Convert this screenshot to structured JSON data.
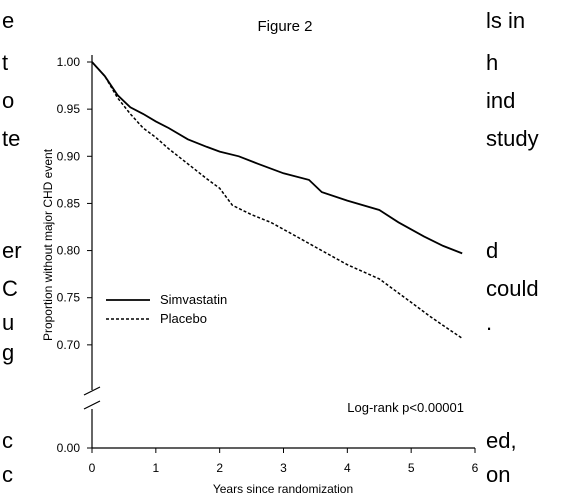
{
  "background_text": {
    "left": [
      "e",
      "t",
      "o",
      "te",
      "er",
      "C",
      "u",
      "g",
      "c",
      "c"
    ],
    "right": [
      "ls in",
      "h",
      "ind",
      "study",
      "d",
      "could",
      ".",
      "ed,",
      "on"
    ]
  },
  "chart_data": {
    "type": "line",
    "title": "Figure 2",
    "xlabel": "Years since randomization",
    "ylabel": "Proportion without major CHD event",
    "xlim": [
      0,
      6
    ],
    "ylim": [
      0.65,
      1.0
    ],
    "x_ticks": [
      "0",
      "1",
      "2",
      "3",
      "4",
      "5",
      "6"
    ],
    "y_ticks": [
      "1.00",
      "0.95",
      "0.90",
      "0.85",
      "0.80",
      "0.75",
      "0.70"
    ],
    "y_zero_label": "0.00",
    "axis_break": true,
    "annotation": "Log-rank p<0.00001",
    "legend_position": "lower-left",
    "series": [
      {
        "name": "Simvastatin",
        "style": "solid",
        "points": [
          [
            0,
            1.0
          ],
          [
            0.2,
            0.985
          ],
          [
            0.4,
            0.965
          ],
          [
            0.6,
            0.952
          ],
          [
            0.8,
            0.945
          ],
          [
            1.0,
            0.937
          ],
          [
            1.2,
            0.93
          ],
          [
            1.5,
            0.918
          ],
          [
            1.8,
            0.91
          ],
          [
            2.0,
            0.905
          ],
          [
            2.3,
            0.9
          ],
          [
            2.6,
            0.892
          ],
          [
            3.0,
            0.882
          ],
          [
            3.4,
            0.875
          ],
          [
            3.6,
            0.862
          ],
          [
            4.0,
            0.853
          ],
          [
            4.5,
            0.843
          ],
          [
            4.8,
            0.83
          ],
          [
            5.2,
            0.815
          ],
          [
            5.5,
            0.805
          ],
          [
            5.8,
            0.797
          ]
        ]
      },
      {
        "name": "Placebo",
        "style": "dashed",
        "points": [
          [
            0,
            1.0
          ],
          [
            0.2,
            0.985
          ],
          [
            0.4,
            0.962
          ],
          [
            0.6,
            0.945
          ],
          [
            0.8,
            0.93
          ],
          [
            1.0,
            0.92
          ],
          [
            1.2,
            0.908
          ],
          [
            1.5,
            0.892
          ],
          [
            1.8,
            0.876
          ],
          [
            2.0,
            0.866
          ],
          [
            2.2,
            0.848
          ],
          [
            2.5,
            0.838
          ],
          [
            2.8,
            0.83
          ],
          [
            3.2,
            0.815
          ],
          [
            3.6,
            0.8
          ],
          [
            4.0,
            0.785
          ],
          [
            4.5,
            0.77
          ],
          [
            5.0,
            0.745
          ],
          [
            5.3,
            0.73
          ],
          [
            5.6,
            0.716
          ],
          [
            5.8,
            0.707
          ]
        ]
      }
    ]
  }
}
